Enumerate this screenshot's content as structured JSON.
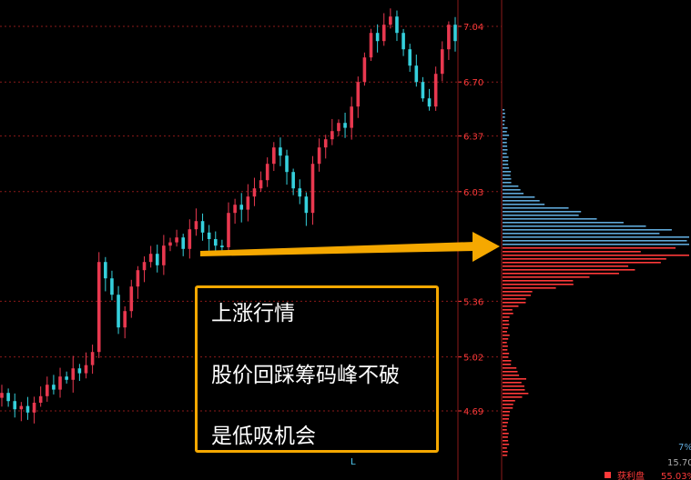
{
  "chart_data": {
    "type": "candlestick",
    "y_axis": {
      "ticks": [
        "7.04",
        "6.70",
        "6.37",
        "6.03",
        "5.36",
        "5.02",
        "4.69"
      ],
      "tick_values": [
        7.04,
        6.7,
        6.37,
        6.03,
        5.36,
        5.02,
        4.69
      ],
      "range": [
        4.45,
        7.2
      ],
      "side": "right",
      "grid": true
    },
    "x_axis": {
      "marker_label": "L"
    },
    "price_series": [
      4.8,
      4.75,
      4.7,
      4.72,
      4.68,
      4.74,
      4.78,
      4.85,
      4.82,
      4.9,
      4.88,
      4.95,
      4.92,
      4.97,
      5.05,
      5.6,
      5.5,
      5.4,
      5.2,
      5.3,
      5.45,
      5.55,
      5.6,
      5.65,
      5.58,
      5.7,
      5.72,
      5.75,
      5.68,
      5.8,
      5.85,
      5.78,
      5.74,
      5.7,
      5.69,
      5.9,
      5.95,
      5.92,
      6.0,
      6.05,
      6.1,
      6.2,
      6.3,
      6.25,
      6.15,
      6.05,
      6.0,
      5.9,
      6.2,
      6.3,
      6.35,
      6.4,
      6.45,
      6.42,
      6.55,
      6.7,
      6.85,
      7.0,
      6.95,
      7.05,
      7.1,
      7.0,
      6.9,
      6.8,
      6.7,
      6.6,
      6.55,
      6.75,
      6.9,
      7.05,
      6.95
    ],
    "chip_distribution": {
      "note": "volume profile bars on right side",
      "profit_color": "#ff3a3a",
      "loss_color": "#5fa8d8"
    },
    "bottom_right": {
      "legend_label": "获利盘",
      "legend_value": "55.03%",
      "partial_value": "15.70",
      "partial_percent": "7%"
    }
  },
  "annotation": {
    "lines": [
      "上涨行情",
      "股价回踩筹码峰不破",
      "是低吸机会"
    ],
    "border_color": "#f5a800",
    "arrow_color": "#f5a800"
  },
  "colors": {
    "up": "#e8384f",
    "down": "#35d0dc",
    "grid": "#8b1a1a",
    "axis_text": "#ff3a3a"
  }
}
